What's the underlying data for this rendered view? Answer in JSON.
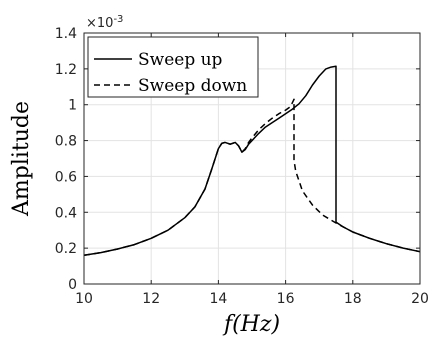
{
  "chart_data": {
    "type": "line",
    "title": "",
    "xlabel": "f(Hz)",
    "ylabel": "Amplitude",
    "y_exponent_label": "×10",
    "y_exponent_power": "-3",
    "xlim": [
      10,
      20
    ],
    "ylim": [
      0,
      1.4
    ],
    "xticks": [
      10,
      12,
      14,
      16,
      18,
      20
    ],
    "xtick_labels": [
      "10",
      "12",
      "14",
      "16",
      "18",
      "20"
    ],
    "yticks": [
      0,
      0.2,
      0.4,
      0.6,
      0.8,
      1,
      1.2,
      1.4
    ],
    "ytick_labels": [
      "0",
      "0.2",
      "0.4",
      "0.6",
      "0.8",
      "1",
      "1.2",
      "1.4"
    ],
    "grid": true,
    "legend_position": "top-left",
    "series": [
      {
        "name": "Sweep up",
        "style": "solid",
        "x": [
          10,
          10.5,
          11,
          11.5,
          12,
          12.5,
          13,
          13.3,
          13.6,
          13.8,
          14,
          14.1,
          14.2,
          14.35,
          14.5,
          14.6,
          14.7,
          14.8,
          14.9,
          15.0,
          15.2,
          15.4,
          15.6,
          15.8,
          16.0,
          16.2,
          16.4,
          16.6,
          16.8,
          17.0,
          17.2,
          17.35,
          17.5,
          17.5,
          17.7,
          18.0,
          18.5,
          19.0,
          19.5,
          20.0
        ],
        "y": [
          0.16,
          0.175,
          0.195,
          0.22,
          0.255,
          0.3,
          0.37,
          0.43,
          0.53,
          0.64,
          0.755,
          0.785,
          0.79,
          0.78,
          0.79,
          0.77,
          0.735,
          0.75,
          0.78,
          0.8,
          0.84,
          0.875,
          0.9,
          0.925,
          0.95,
          0.975,
          1.005,
          1.05,
          1.11,
          1.16,
          1.2,
          1.21,
          1.215,
          0.345,
          0.32,
          0.29,
          0.255,
          0.225,
          0.2,
          0.18
        ]
      },
      {
        "name": "Sweep down",
        "style": "dashed",
        "x": [
          10,
          10.5,
          11,
          11.5,
          12,
          12.5,
          13,
          13.3,
          13.6,
          13.8,
          14,
          14.1,
          14.2,
          14.35,
          14.5,
          14.6,
          14.7,
          14.8,
          14.9,
          15.0,
          15.2,
          15.4,
          15.6,
          15.8,
          16.0,
          16.15,
          16.25,
          16.25,
          16.3,
          16.5,
          16.8,
          17.1,
          17.5,
          18.0,
          18.5,
          19.0,
          19.5,
          20.0
        ],
        "y": [
          0.16,
          0.175,
          0.195,
          0.22,
          0.255,
          0.3,
          0.37,
          0.43,
          0.53,
          0.64,
          0.755,
          0.785,
          0.79,
          0.78,
          0.79,
          0.77,
          0.735,
          0.755,
          0.79,
          0.815,
          0.86,
          0.895,
          0.925,
          0.95,
          0.97,
          0.99,
          1.03,
          0.69,
          0.63,
          0.52,
          0.44,
          0.385,
          0.34,
          0.29,
          0.255,
          0.225,
          0.2,
          0.18
        ]
      }
    ]
  }
}
